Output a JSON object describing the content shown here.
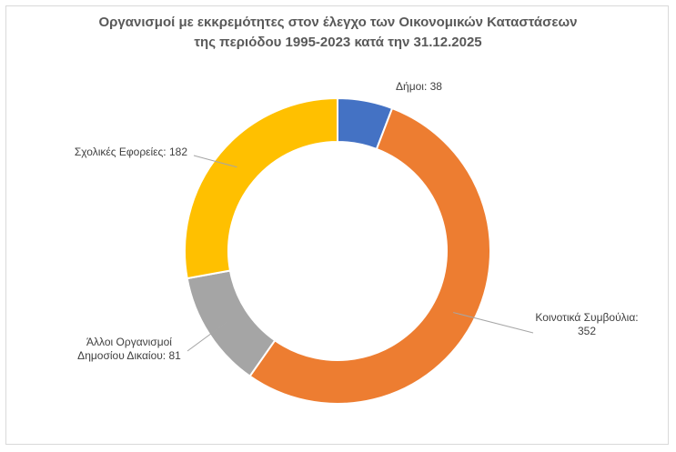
{
  "chart_data": {
    "type": "pie",
    "variant": "doughnut",
    "title_lines": [
      "Οργανισμοί με εκκρεμότητες στον έλεγχο των Οικονομικών Καταστάσεων",
      "της περιόδου 1995-2023 κατά την 31.12.2025"
    ],
    "categories": [
      "Δήμοι",
      "Κοινοτικά Συμβούλια",
      "Άλλοι Οργανισμοί Δημοσίου Δικαίου",
      "Σχολικές Εφορείες"
    ],
    "values": [
      38,
      352,
      81,
      182
    ],
    "colors": [
      "#4472C4",
      "#ED7D31",
      "#A5A5A5",
      "#FFC000"
    ],
    "labels": [
      {
        "lines": [
          "Δήμοι: 38"
        ]
      },
      {
        "lines": [
          "Κοινοτικά Συμβούλια:",
          "352"
        ]
      },
      {
        "lines": [
          "Άλλοι Οργανισμοί",
          "Δημοσίου Δικαίου: 81"
        ]
      },
      {
        "lines": [
          "Σχολικές Εφορείες: 182"
        ]
      }
    ],
    "legend": "none"
  }
}
